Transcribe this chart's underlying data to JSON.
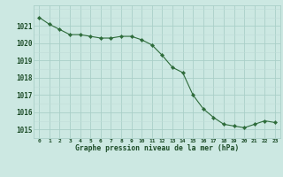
{
  "hours": [
    0,
    1,
    2,
    3,
    4,
    5,
    6,
    7,
    8,
    9,
    10,
    11,
    12,
    13,
    14,
    15,
    16,
    17,
    18,
    19,
    20,
    21,
    22,
    23
  ],
  "pressure": [
    1021.5,
    1021.1,
    1020.8,
    1020.5,
    1020.5,
    1020.4,
    1020.3,
    1020.3,
    1020.4,
    1020.4,
    1020.2,
    1019.9,
    1019.3,
    1018.6,
    1018.3,
    1017.0,
    1016.2,
    1015.7,
    1015.3,
    1015.2,
    1015.1,
    1015.3,
    1015.5,
    1015.4
  ],
  "ylim": [
    1014.5,
    1022.2
  ],
  "yticks": [
    1015,
    1016,
    1017,
    1018,
    1019,
    1020,
    1021
  ],
  "xlabel": "Graphe pression niveau de la mer (hPa)",
  "bg_color": "#cce8e2",
  "grid_color_major": "#aacfc8",
  "grid_color_minor": "#c0ddd9",
  "line_color": "#2d6b3a",
  "marker_color": "#2d6b3a",
  "text_color": "#1a4a25",
  "title_color": "#1a4a25"
}
